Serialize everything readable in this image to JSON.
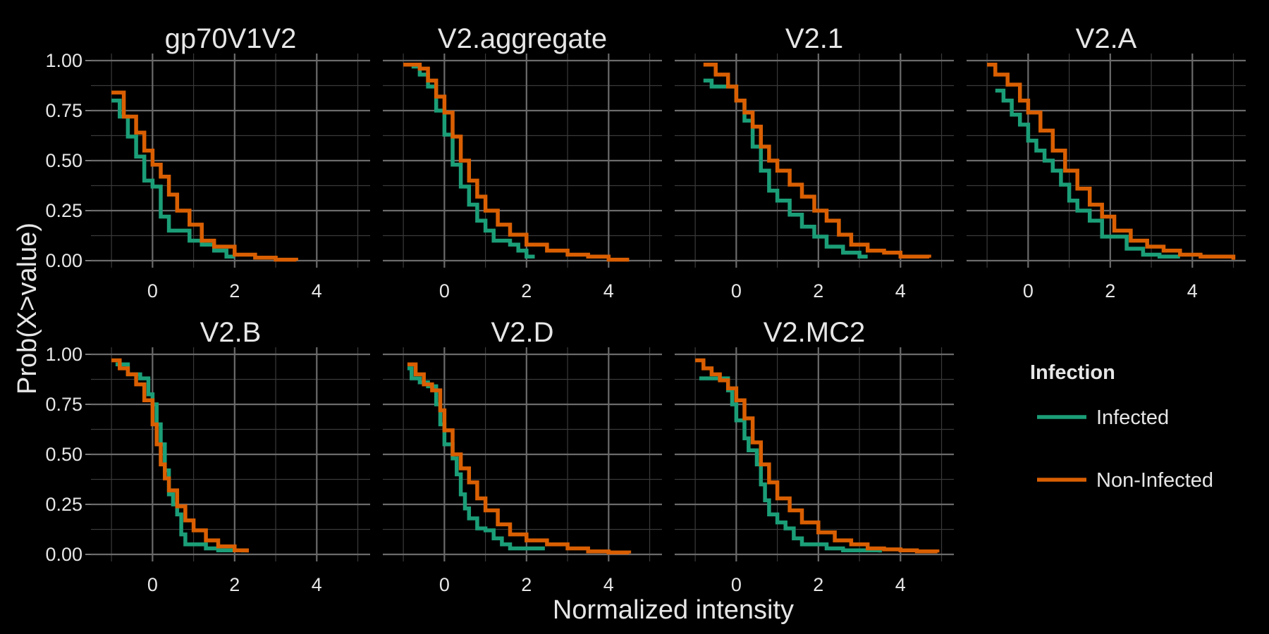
{
  "chart_data": {
    "type": "line",
    "subtype": "survival-step",
    "xlabel": "Normalized intensity",
    "ylabel": "Prob(X>value)",
    "xlim": [
      -1.5,
      5.3
    ],
    "ylim": [
      0,
      1
    ],
    "x_ticks": [
      0,
      2,
      4
    ],
    "y_ticks": [
      0,
      0.25,
      0.5,
      0.75,
      1.0
    ],
    "y_tick_labels": [
      "0.00",
      "0.25",
      "0.50",
      "0.75",
      "1.00"
    ],
    "grid": true,
    "legend": {
      "title": "Infection",
      "placement": "right",
      "entries": [
        {
          "name": "Infected",
          "color": "#1b9e77"
        },
        {
          "name": "Non-Infected",
          "color": "#d95f02"
        }
      ]
    },
    "panels": [
      {
        "title": "gp70V1V2",
        "series": [
          {
            "name": "Infected",
            "x": [
              -1.0,
              -0.8,
              -0.6,
              -0.4,
              -0.2,
              0.0,
              0.2,
              0.4,
              0.6,
              0.9,
              1.2,
              1.5,
              1.8,
              2.0
            ],
            "y": [
              0.8,
              0.72,
              0.62,
              0.52,
              0.4,
              0.37,
              0.22,
              0.15,
              0.15,
              0.1,
              0.08,
              0.05,
              0.02,
              0.02
            ]
          },
          {
            "name": "Non-Infected",
            "x": [
              -1.0,
              -0.7,
              -0.4,
              -0.2,
              0.0,
              0.2,
              0.4,
              0.6,
              0.9,
              1.2,
              1.5,
              2.0,
              2.5,
              3.0,
              3.5
            ],
            "y": [
              0.84,
              0.72,
              0.64,
              0.55,
              0.48,
              0.42,
              0.33,
              0.25,
              0.18,
              0.1,
              0.07,
              0.03,
              0.015,
              0.005,
              0.0
            ]
          }
        ]
      },
      {
        "title": "V2.aggregate",
        "series": [
          {
            "name": "Infected",
            "x": [
              -0.8,
              -0.6,
              -0.4,
              -0.2,
              0.0,
              0.2,
              0.4,
              0.6,
              0.8,
              1.0,
              1.2,
              1.4,
              1.6,
              1.8,
              2.0,
              2.2
            ],
            "y": [
              0.97,
              0.93,
              0.87,
              0.75,
              0.63,
              0.48,
              0.37,
              0.28,
              0.2,
              0.15,
              0.1,
              0.1,
              0.08,
              0.05,
              0.02,
              0.02
            ]
          },
          {
            "name": "Non-Infected",
            "x": [
              -1.0,
              -0.6,
              -0.4,
              -0.2,
              0.0,
              0.2,
              0.4,
              0.6,
              0.8,
              1.0,
              1.3,
              1.6,
              2.0,
              2.5,
              3.0,
              3.5,
              4.0,
              4.5
            ],
            "y": [
              0.98,
              0.96,
              0.9,
              0.82,
              0.74,
              0.62,
              0.5,
              0.4,
              0.32,
              0.25,
              0.18,
              0.13,
              0.08,
              0.05,
              0.03,
              0.02,
              0.005,
              0.005
            ]
          }
        ]
      },
      {
        "title": "V2.1",
        "series": [
          {
            "name": "Infected",
            "x": [
              -0.8,
              -0.6,
              -0.3,
              0.0,
              0.2,
              0.4,
              0.6,
              0.8,
              1.0,
              1.3,
              1.6,
              1.9,
              2.2,
              2.6,
              3.0,
              3.2
            ],
            "y": [
              0.9,
              0.87,
              0.87,
              0.8,
              0.7,
              0.57,
              0.45,
              0.35,
              0.3,
              0.23,
              0.17,
              0.12,
              0.07,
              0.04,
              0.02,
              0.02
            ]
          },
          {
            "name": "Non-Infected",
            "x": [
              -0.8,
              -0.5,
              -0.2,
              0.0,
              0.2,
              0.4,
              0.6,
              0.8,
              1.0,
              1.3,
              1.6,
              1.9,
              2.2,
              2.5,
              2.8,
              3.2,
              3.6,
              4.0,
              4.7
            ],
            "y": [
              0.98,
              0.93,
              0.87,
              0.8,
              0.74,
              0.67,
              0.57,
              0.5,
              0.45,
              0.38,
              0.32,
              0.25,
              0.2,
              0.13,
              0.08,
              0.05,
              0.04,
              0.02,
              0.015
            ]
          }
        ]
      },
      {
        "title": "V2.A",
        "series": [
          {
            "name": "Infected",
            "x": [
              -0.8,
              -0.6,
              -0.4,
              -0.2,
              0.0,
              0.2,
              0.4,
              0.6,
              0.8,
              1.0,
              1.2,
              1.5,
              1.8,
              2.0,
              2.4,
              2.8,
              3.2,
              3.7
            ],
            "y": [
              0.85,
              0.8,
              0.73,
              0.68,
              0.6,
              0.55,
              0.5,
              0.45,
              0.38,
              0.3,
              0.25,
              0.2,
              0.12,
              0.12,
              0.06,
              0.03,
              0.02,
              0.02
            ]
          },
          {
            "name": "Non-Infected",
            "x": [
              -1.0,
              -0.8,
              -0.5,
              -0.2,
              0.0,
              0.3,
              0.6,
              0.9,
              1.2,
              1.5,
              1.8,
              2.1,
              2.5,
              2.9,
              3.3,
              3.7,
              4.2,
              5.0
            ],
            "y": [
              0.98,
              0.93,
              0.88,
              0.8,
              0.74,
              0.65,
              0.55,
              0.45,
              0.36,
              0.28,
              0.22,
              0.15,
              0.1,
              0.07,
              0.05,
              0.03,
              0.02,
              0.005
            ]
          }
        ]
      },
      {
        "title": "V2.B",
        "series": [
          {
            "name": "Infected",
            "x": [
              -0.9,
              -0.6,
              -0.3,
              -0.1,
              0.0,
              0.1,
              0.2,
              0.3,
              0.4,
              0.5,
              0.6,
              0.7,
              0.8,
              1.0,
              1.3,
              1.6,
              2.0,
              2.2
            ],
            "y": [
              0.95,
              0.9,
              0.88,
              0.8,
              0.75,
              0.65,
              0.55,
              0.42,
              0.3,
              0.25,
              0.2,
              0.1,
              0.05,
              0.05,
              0.03,
              0.02,
              0.02,
              0.01
            ]
          },
          {
            "name": "Non-Infected",
            "x": [
              -1.0,
              -0.8,
              -0.6,
              -0.4,
              -0.2,
              0.0,
              0.1,
              0.2,
              0.3,
              0.4,
              0.6,
              0.8,
              1.0,
              1.3,
              1.6,
              2.0,
              2.3
            ],
            "y": [
              0.97,
              0.93,
              0.9,
              0.85,
              0.77,
              0.65,
              0.55,
              0.45,
              0.38,
              0.32,
              0.24,
              0.17,
              0.12,
              0.07,
              0.04,
              0.02,
              0.01
            ]
          }
        ]
      },
      {
        "title": "V2.D",
        "series": [
          {
            "name": "Infected",
            "x": [
              -0.9,
              -0.8,
              -0.6,
              -0.4,
              -0.2,
              -0.1,
              0.0,
              0.2,
              0.3,
              0.4,
              0.5,
              0.6,
              0.8,
              1.0,
              1.2,
              1.4,
              1.6,
              2.0,
              2.4
            ],
            "y": [
              0.93,
              0.88,
              0.86,
              0.84,
              0.75,
              0.65,
              0.55,
              0.48,
              0.4,
              0.3,
              0.23,
              0.18,
              0.13,
              0.12,
              0.08,
              0.05,
              0.03,
              0.03,
              0.02
            ]
          },
          {
            "name": "Non-Infected",
            "x": [
              -0.9,
              -0.7,
              -0.5,
              -0.3,
              -0.1,
              0.0,
              0.2,
              0.4,
              0.6,
              0.8,
              1.0,
              1.3,
              1.6,
              2.0,
              2.5,
              3.0,
              3.5,
              4.0,
              4.5
            ],
            "y": [
              0.95,
              0.9,
              0.85,
              0.82,
              0.72,
              0.62,
              0.5,
              0.43,
              0.36,
              0.28,
              0.22,
              0.15,
              0.1,
              0.07,
              0.05,
              0.03,
              0.015,
              0.01,
              0.005
            ]
          }
        ]
      },
      {
        "title": "V2.MC2",
        "series": [
          {
            "name": "Infected",
            "x": [
              -0.9,
              -0.5,
              -0.2,
              -0.1,
              0.0,
              0.2,
              0.3,
              0.5,
              0.6,
              0.7,
              0.8,
              1.0,
              1.2,
              1.4,
              1.6,
              1.8,
              2.2,
              2.6,
              3.0,
              3.5
            ],
            "y": [
              0.88,
              0.88,
              0.82,
              0.75,
              0.67,
              0.58,
              0.52,
              0.45,
              0.35,
              0.27,
              0.2,
              0.16,
              0.13,
              0.08,
              0.05,
              0.05,
              0.03,
              0.02,
              0.02,
              0.01
            ]
          },
          {
            "name": "Non-Infected",
            "x": [
              -1.0,
              -0.8,
              -0.6,
              -0.4,
              -0.2,
              0.0,
              0.2,
              0.4,
              0.6,
              0.8,
              1.0,
              1.3,
              1.6,
              2.0,
              2.4,
              2.8,
              3.2,
              3.6,
              4.0,
              4.4,
              4.9
            ],
            "y": [
              0.97,
              0.93,
              0.9,
              0.87,
              0.83,
              0.77,
              0.68,
              0.56,
              0.45,
              0.36,
              0.28,
              0.22,
              0.16,
              0.11,
              0.07,
              0.05,
              0.03,
              0.025,
              0.02,
              0.015,
              0.01
            ]
          }
        ]
      }
    ]
  }
}
